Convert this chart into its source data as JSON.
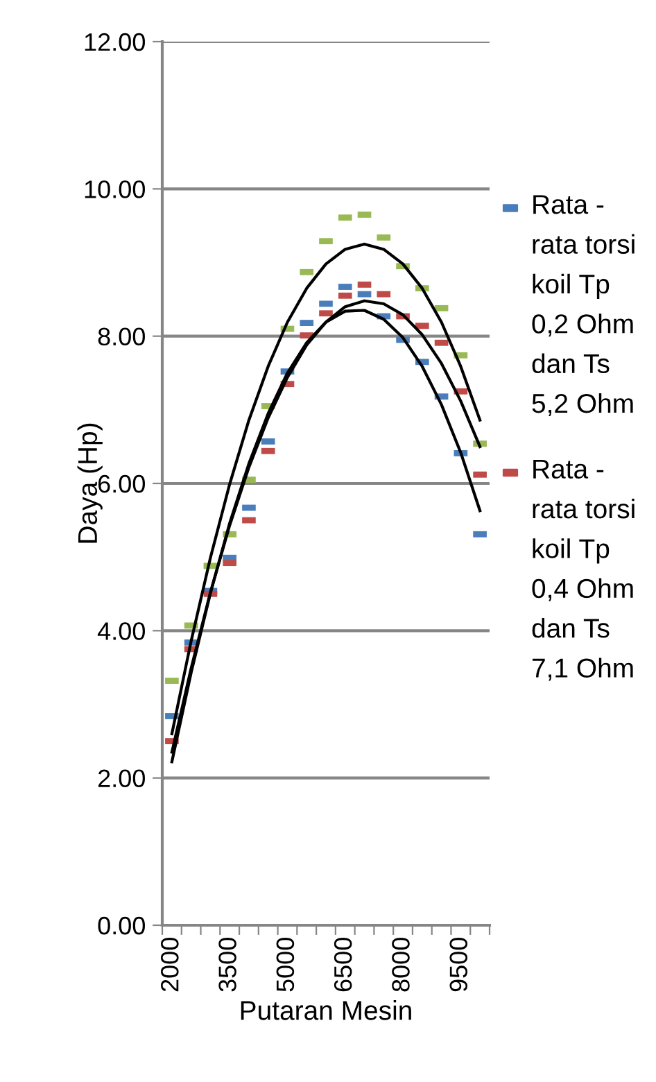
{
  "chart_data": {
    "type": "scatter",
    "xlabel": "Putaran Mesin",
    "ylabel": "Daya (Hp)",
    "categories": [
      "2000",
      null,
      null,
      "3500",
      null,
      null,
      "5000",
      null,
      null,
      "6500",
      null,
      null,
      "8000",
      null,
      null,
      "9500",
      null
    ],
    "ylim": [
      0,
      12
    ],
    "yticks": [
      {
        "value": 0,
        "label": "0.00"
      },
      {
        "value": 2,
        "label": "2.00"
      },
      {
        "value": 4,
        "label": "4.00"
      },
      {
        "value": 6,
        "label": "6.00"
      },
      {
        "value": 8,
        "label": "8.00"
      },
      {
        "value": 10,
        "label": "10.00"
      },
      {
        "value": 12,
        "label": "12.00"
      }
    ],
    "grid": "y",
    "legend": "right",
    "marker": "square",
    "series": [
      {
        "name": "Rata - rata torsi koil Tp 0,2 Ohm dan Ts 5,2 Ohm",
        "color": "#4a7ebb",
        "values": [
          2.84,
          3.84,
          4.54,
          4.99,
          5.67,
          6.57,
          7.52,
          8.18,
          8.44,
          8.67,
          8.57,
          8.27,
          7.95,
          7.65,
          7.18,
          6.41,
          5.31
        ]
      },
      {
        "name": "Rata - rata torsi koil Tp 0,4 Ohm dan Ts 7,1 Ohm",
        "color": "#be4b48",
        "values": [
          2.5,
          3.75,
          4.5,
          4.92,
          5.5,
          6.44,
          7.35,
          8.01,
          8.31,
          8.55,
          8.7,
          8.57,
          8.27,
          8.14,
          7.91,
          7.25,
          6.12
        ]
      },
      {
        "color": "#98b954",
        "values": [
          3.32,
          4.07,
          4.88,
          5.31,
          6.05,
          7.05,
          8.1,
          8.87,
          9.29,
          9.61,
          9.65,
          9.34,
          8.95,
          8.65,
          8.38,
          7.74,
          6.54
        ]
      },
      {
        "type": "line",
        "marker": "none",
        "color": "#000000",
        "values": [
          2.22,
          3.43,
          4.51,
          5.46,
          6.27,
          6.95,
          7.5,
          7.91,
          8.19,
          8.34,
          8.35,
          8.23,
          7.98,
          7.59,
          7.07,
          6.42,
          5.63
        ]
      },
      {
        "type": "line",
        "marker": "none",
        "color": "#000000",
        "values": [
          2.35,
          3.49,
          4.52,
          5.43,
          6.22,
          6.89,
          7.44,
          7.88,
          8.19,
          8.4,
          8.48,
          8.44,
          8.29,
          8.02,
          7.63,
          7.12,
          6.5
        ]
      },
      {
        "type": "line",
        "marker": "none",
        "color": "#000000",
        "values": [
          2.6,
          3.86,
          4.99,
          5.99,
          6.86,
          7.59,
          8.19,
          8.65,
          8.98,
          9.18,
          9.25,
          9.18,
          8.98,
          8.65,
          8.19,
          7.59,
          6.86
        ]
      }
    ]
  }
}
